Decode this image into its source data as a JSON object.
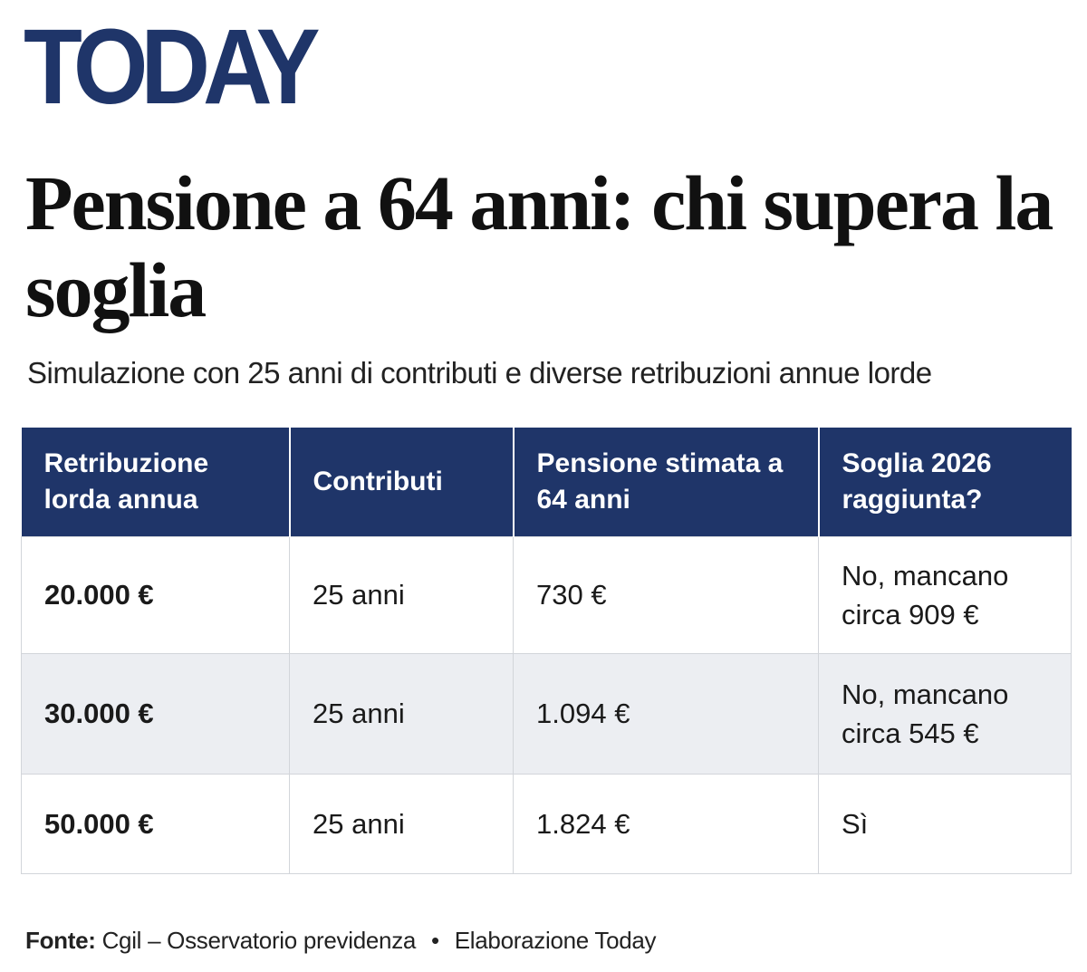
{
  "brand": {
    "logo_text": "TODAY",
    "color": "#1f3569"
  },
  "article": {
    "headline": "Pensione a 64 anni: chi supera la soglia",
    "subtitle": "Simulazione con 25 anni di contributi e diverse retribuzioni annue lorde"
  },
  "table": {
    "header_color": "#1f3569",
    "stripe_color": "#eceef2",
    "headers": [
      "Retribuzione lorda annua",
      "Contributi",
      "Pensione stimata a 64 anni",
      "Soglia 2026 raggiunta?"
    ],
    "rows": [
      [
        "20.000 €",
        "25 anni",
        "730 €",
        "No, mancano circa 909 €"
      ],
      [
        "30.000 €",
        "25 anni",
        "1.094 €",
        "No, mancano circa 545 €"
      ],
      [
        "50.000 €",
        "25 anni",
        "1.824 €",
        "Sì"
      ]
    ]
  },
  "footer": {
    "source_label": "Fonte:",
    "source_text": "Cgil – Osservatorio previdenza",
    "separator": "•",
    "credit": "Elaborazione Today"
  }
}
